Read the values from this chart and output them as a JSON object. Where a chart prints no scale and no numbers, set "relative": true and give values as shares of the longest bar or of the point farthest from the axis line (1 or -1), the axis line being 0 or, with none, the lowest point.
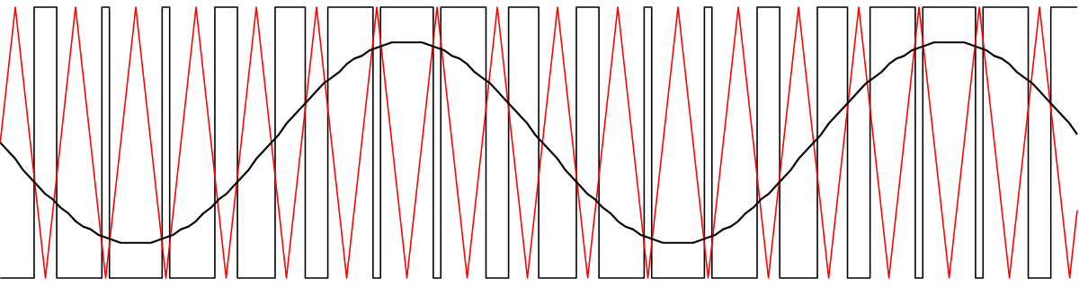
{
  "chart_data": {
    "type": "line",
    "relative": true,
    "categories": [
      null,
      null,
      null,
      null,
      null,
      null,
      null,
      null,
      null,
      null,
      null,
      null,
      null,
      null,
      null,
      null,
      null,
      null,
      null,
      null,
      null,
      null,
      null,
      null,
      null,
      null,
      null,
      null,
      null,
      null,
      null,
      null,
      null,
      null,
      null,
      null,
      null,
      null,
      null,
      null,
      null,
      null,
      null,
      null,
      null,
      null,
      null,
      null,
      null,
      null,
      null,
      null,
      null,
      null,
      null,
      null,
      null,
      null,
      null,
      null,
      null,
      null,
      null,
      null,
      null,
      null,
      null,
      null,
      null,
      null,
      null,
      null,
      null,
      null,
      null,
      null,
      null,
      null,
      null,
      null,
      null,
      null,
      null,
      null,
      null,
      null,
      null,
      null,
      null,
      null,
      null,
      null,
      null,
      null,
      null,
      null,
      null,
      null,
      null,
      null,
      null,
      null,
      null,
      null,
      null,
      null,
      null,
      null,
      null,
      null,
      null,
      null,
      null,
      null,
      null,
      null,
      null,
      null,
      null,
      null,
      null,
      null,
      null,
      null,
      null,
      null,
      null,
      null,
      null,
      null,
      null,
      null,
      null,
      null,
      null,
      null,
      null,
      null,
      null,
      null,
      null,
      null,
      null,
      null
    ],
    "series": [
      {
        "type": "step",
        "color": "#000000",
        "values": [
          0,
          0,
          0,
          0,
          0,
          1,
          1,
          1,
          0,
          0,
          0,
          0,
          0,
          0,
          1,
          0,
          0,
          0,
          0,
          0,
          0,
          0,
          1,
          0,
          0,
          0,
          0,
          0,
          0,
          1,
          1,
          1,
          0,
          0,
          0,
          0,
          0,
          1,
          1,
          1,
          1,
          0,
          0,
          0,
          1,
          1,
          1,
          1,
          1,
          1,
          0,
          1,
          1,
          1,
          1,
          1,
          1,
          1,
          0,
          1,
          1,
          1,
          1,
          1,
          1,
          0,
          0,
          0,
          1,
          1,
          1,
          1,
          0,
          0,
          0,
          0,
          0,
          1,
          1,
          1,
          0,
          0,
          0,
          0,
          0,
          0,
          1,
          0,
          0,
          0,
          0,
          0,
          0,
          0,
          1,
          0,
          0,
          0,
          0,
          0,
          0,
          1,
          1,
          1,
          0,
          0,
          0,
          0,
          0,
          1,
          1,
          1,
          1,
          0,
          0,
          0,
          1,
          1,
          1,
          1,
          1,
          1,
          0,
          1,
          1,
          1,
          1,
          1,
          1,
          1,
          0,
          1,
          1,
          1,
          1,
          1,
          1,
          0,
          0,
          0,
          1,
          1,
          1,
          1
        ]
      },
      {
        "color": "#ff0000",
        "values": [
          0.5,
          0.75,
          1,
          0.75,
          0.5,
          0.25,
          0,
          0.25,
          0.5,
          0.75,
          1,
          0.75,
          0.5,
          0.25,
          0,
          0.25,
          0.5,
          0.75,
          1,
          0.75,
          0.5,
          0.25,
          0,
          0.25,
          0.5,
          0.75,
          1,
          0.75,
          0.5,
          0.25,
          0,
          0.25,
          0.5,
          0.75,
          1,
          0.75,
          0.5,
          0.25,
          0,
          0.25,
          0.5,
          0.75,
          1,
          0.75,
          0.5,
          0.25,
          0,
          0.25,
          0.5,
          0.75,
          1,
          0.75,
          0.5,
          0.25,
          0,
          0.25,
          0.5,
          0.75,
          1,
          0.75,
          0.5,
          0.25,
          0,
          0.25,
          0.5,
          0.75,
          1,
          0.75,
          0.5,
          0.25,
          0,
          0.25,
          0.5,
          0.75,
          1,
          0.75,
          0.5,
          0.25,
          0,
          0.25,
          0.5,
          0.75,
          1,
          0.75,
          0.5,
          0.25,
          0,
          0.25,
          0.5,
          0.75,
          1,
          0.75,
          0.5,
          0.25,
          0,
          0.25,
          0.5,
          0.75,
          1,
          0.75,
          0.5,
          0.25,
          0,
          0.25,
          0.5,
          0.75,
          1,
          0.75,
          0.5,
          0.25,
          0,
          0.25,
          0.5,
          0.75,
          1,
          0.75,
          0.5,
          0.25,
          0,
          0.25,
          0.5,
          0.75,
          1,
          0.75,
          0.5,
          0.25,
          0,
          0.25,
          0.5,
          0.75,
          1,
          0.75,
          0.5,
          0.25,
          0,
          0.25,
          0.5,
          0.75,
          1,
          0.75,
          0.5,
          0.25,
          0,
          0.25
        ]
      },
      {
        "color": "#000000",
        "values": [
          0.5,
          0.47,
          0.44,
          0.4,
          0.37,
          0.34,
          0.31,
          0.29,
          0.26,
          0.24,
          0.21,
          0.19,
          0.18,
          0.16,
          0.15,
          0.14,
          0.13,
          0.13,
          0.13,
          0.13,
          0.13,
          0.14,
          0.15,
          0.16,
          0.18,
          0.19,
          0.21,
          0.24,
          0.26,
          0.29,
          0.31,
          0.34,
          0.37,
          0.4,
          0.44,
          0.47,
          0.5,
          0.53,
          0.57,
          0.6,
          0.63,
          0.66,
          0.69,
          0.72,
          0.74,
          0.76,
          0.79,
          0.81,
          0.82,
          0.84,
          0.85,
          0.86,
          0.87,
          0.87,
          0.87,
          0.87,
          0.87,
          0.86,
          0.85,
          0.84,
          0.82,
          0.81,
          0.79,
          0.76,
          0.74,
          0.72,
          0.69,
          0.66,
          0.63,
          0.6,
          0.57,
          0.53,
          0.5,
          0.47,
          0.44,
          0.4,
          0.37,
          0.34,
          0.31,
          0.29,
          0.26,
          0.24,
          0.21,
          0.19,
          0.18,
          0.16,
          0.15,
          0.14,
          0.13,
          0.13,
          0.13,
          0.13,
          0.13,
          0.14,
          0.15,
          0.16,
          0.18,
          0.19,
          0.21,
          0.24,
          0.26,
          0.29,
          0.31,
          0.34,
          0.37,
          0.4,
          0.44,
          0.47,
          0.5,
          0.53,
          0.57,
          0.6,
          0.63,
          0.66,
          0.69,
          0.72,
          0.74,
          0.76,
          0.79,
          0.81,
          0.82,
          0.84,
          0.85,
          0.86,
          0.87,
          0.87,
          0.87,
          0.87,
          0.87,
          0.86,
          0.85,
          0.84,
          0.82,
          0.81,
          0.79,
          0.76,
          0.74,
          0.72,
          0.69,
          0.66,
          0.63,
          0.6,
          0.57,
          0.53
        ]
      }
    ]
  }
}
